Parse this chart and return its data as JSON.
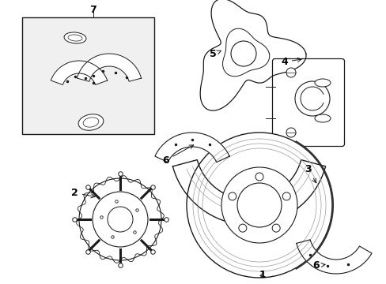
{
  "background_color": "#ffffff",
  "line_color": "#1a1a1a",
  "box_fill": "#f0f0f0",
  "fig_width": 4.89,
  "fig_height": 3.6,
  "dpi": 100
}
